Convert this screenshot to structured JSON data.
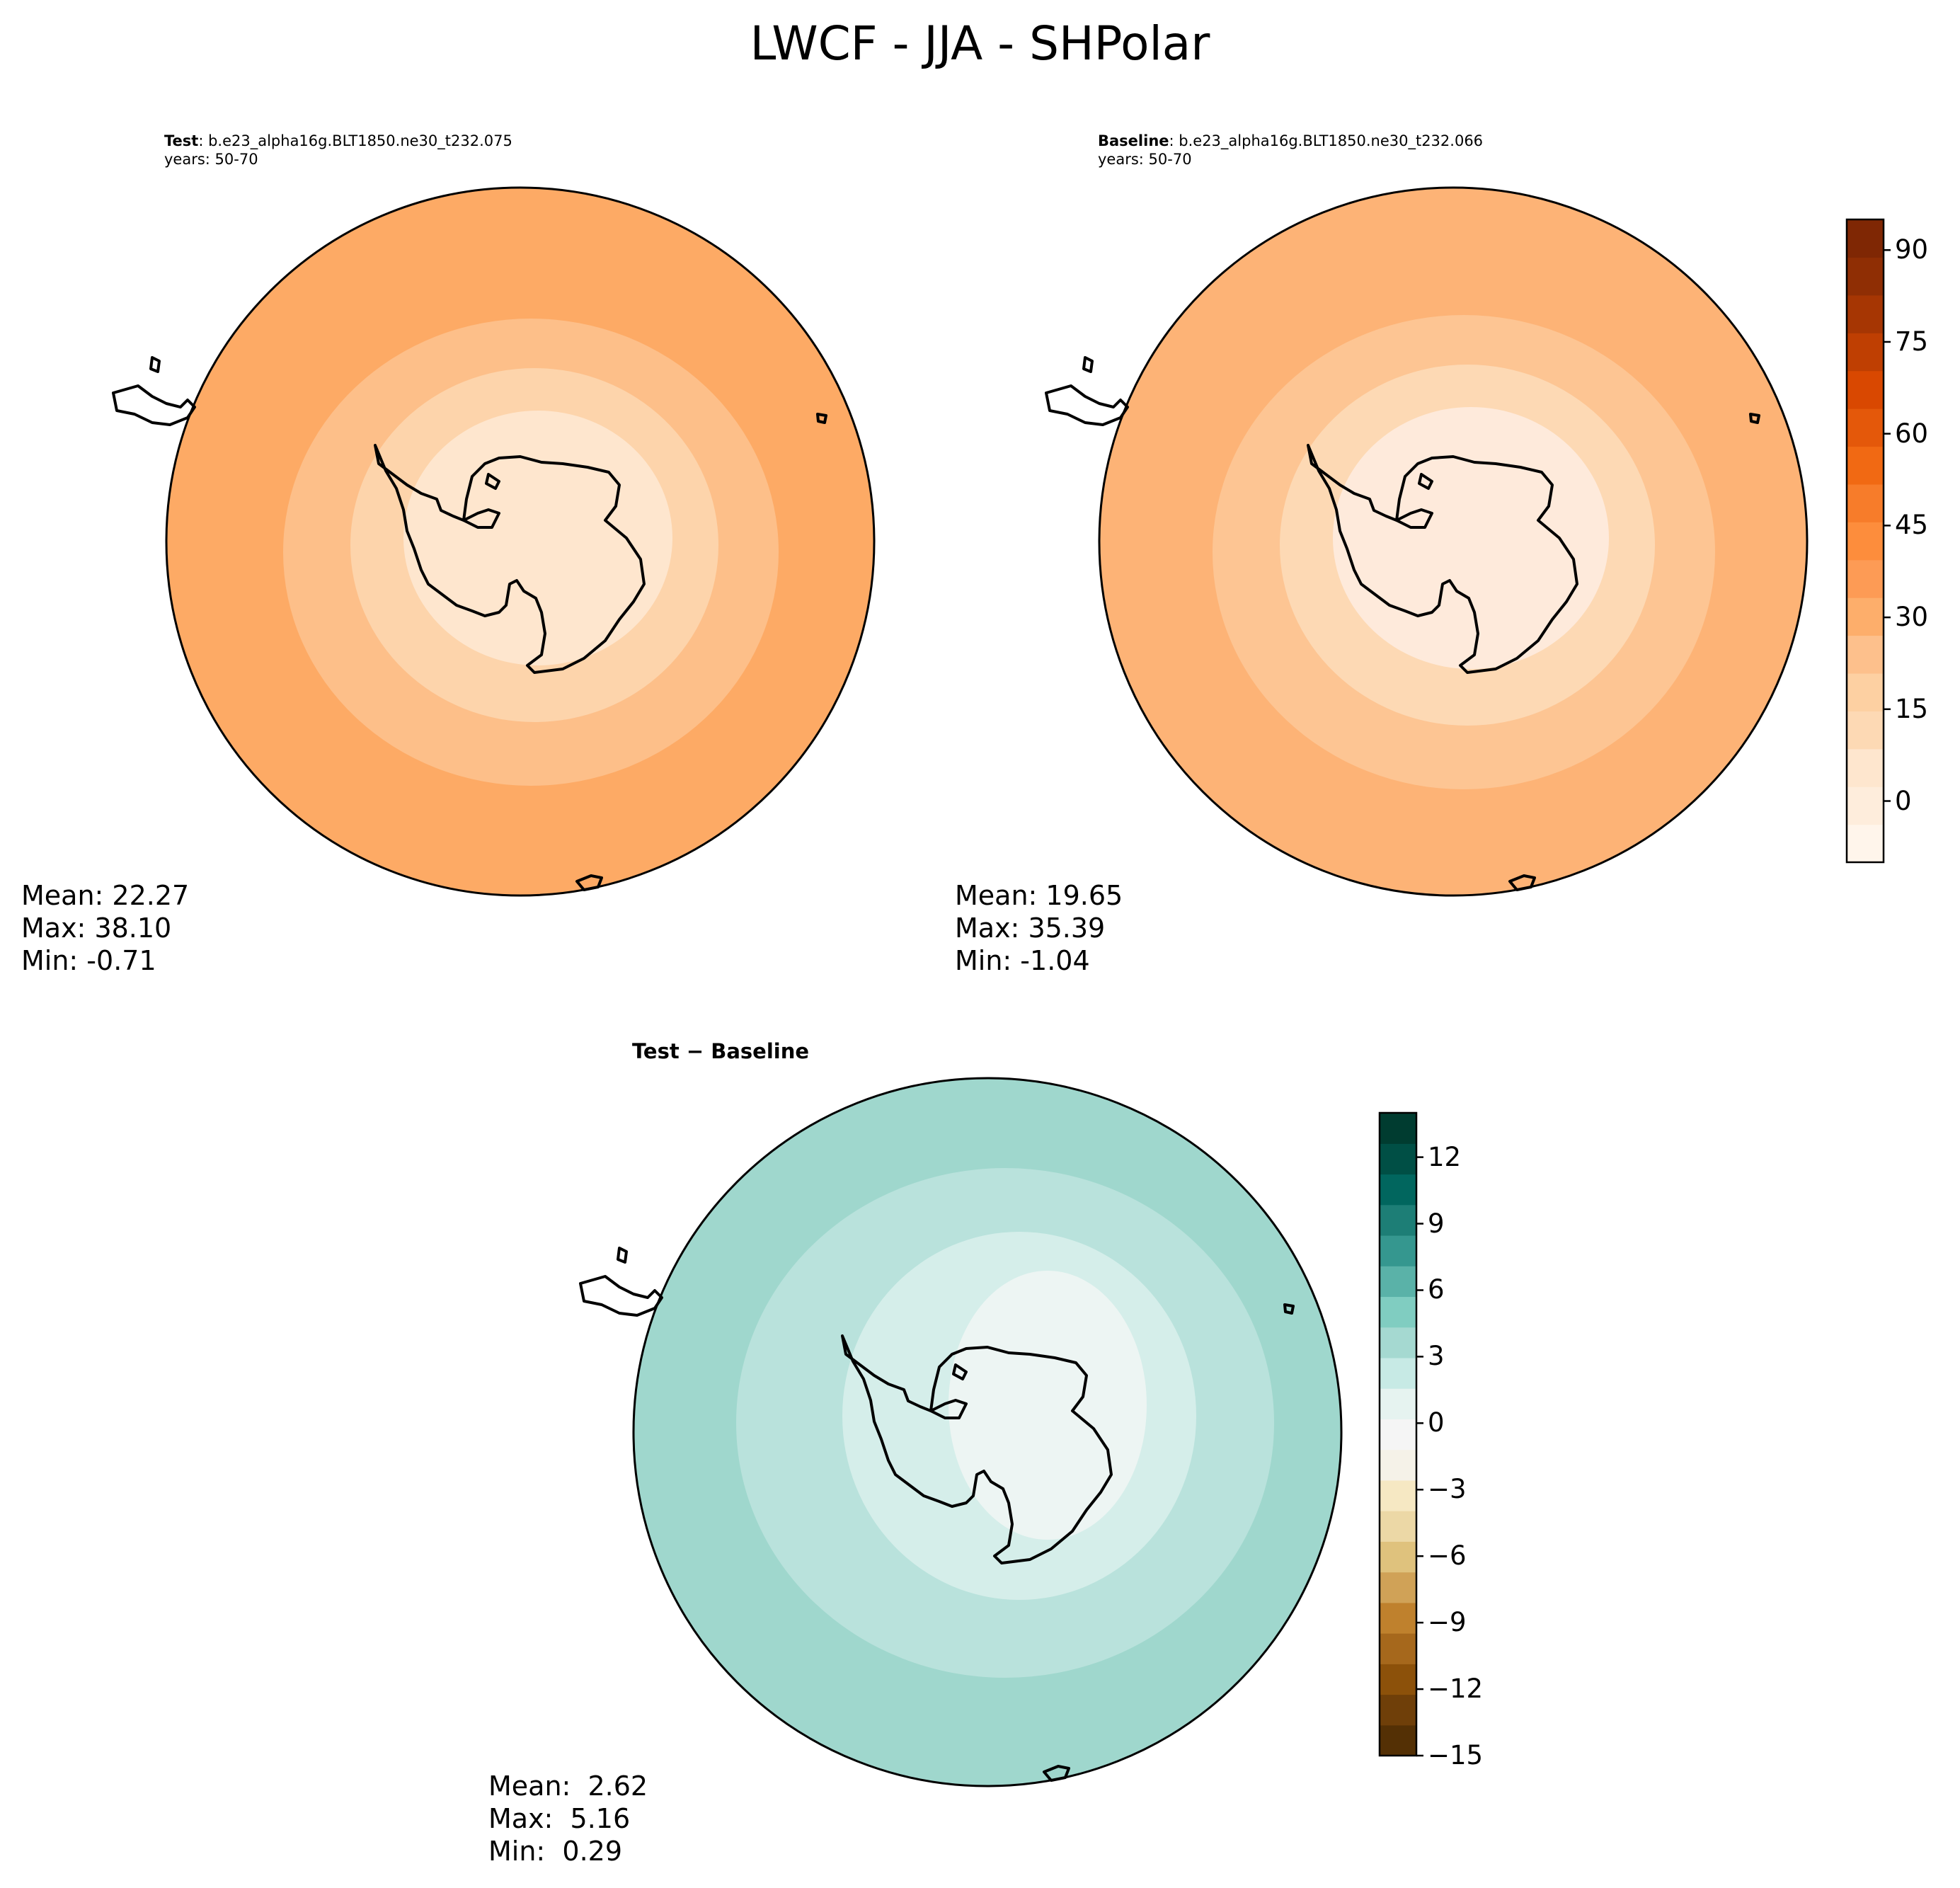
{
  "suptitle": "LWCF - JJA - SHPolar",
  "panels": {
    "test": {
      "title_bold": "Test",
      "case": ": b.e23_alpha16g.BLT1850.ne30_t232.075",
      "years": "years: 50-70",
      "stats": {
        "mean": "Mean: 22.27",
        "max": "Max: 38.10",
        "min": "Min: -0.71"
      }
    },
    "baseline": {
      "title_bold": "Baseline",
      "case": ": b.e23_alpha16g.BLT1850.ne30_t232.066",
      "years": "years: 50-70",
      "stats": {
        "mean": "Mean: 19.65",
        "max": "Max: 35.39",
        "min": "Min: -1.04"
      }
    },
    "diff": {
      "title": "Test − Baseline",
      "stats": {
        "mean": "Mean:  2.62",
        "max": "Max:  5.16",
        "min": "Min:  0.29"
      }
    }
  },
  "colorbars": {
    "lwcf": {
      "colormap": "Oranges",
      "range": [
        -10,
        95
      ],
      "ticks": [
        "90",
        "75",
        "60",
        "45",
        "30",
        "15",
        "0"
      ],
      "colors": [
        "#fff5eb",
        "#feeddc",
        "#fee6ce",
        "#fdd9b4",
        "#fdd0a2",
        "#fdc08c",
        "#fdae6b",
        "#fd9b55",
        "#fd8d3c",
        "#f77c2a",
        "#f16913",
        "#e4580a",
        "#d94801",
        "#bf3f02",
        "#a63603",
        "#8f2e04",
        "#7f2704"
      ]
    },
    "diff": {
      "colormap": "BrBG",
      "range": [
        -15,
        14
      ],
      "ticks": [
        "12",
        "9",
        "6",
        "3",
        "0",
        "−3",
        "−6",
        "−9",
        "−12",
        "−15"
      ],
      "colors": [
        "#543005",
        "#6f3f09",
        "#8c510a",
        "#a6681c",
        "#bf812d",
        "#d0a257",
        "#dfc27d",
        "#ecd8a6",
        "#f6e8c3",
        "#f5f2e8",
        "#f5f5f5",
        "#e6f3f0",
        "#c7eae5",
        "#a5d9d1",
        "#80cdc1",
        "#5ab2a8",
        "#35978f",
        "#1d7e76",
        "#01665e",
        "#004f45",
        "#003c30"
      ]
    }
  },
  "map_fill": {
    "test": [
      "#fdaa65",
      "#fdbf89",
      "#fdd4ab",
      "#fee6ce"
    ],
    "baseline": [
      "#fdb376",
      "#fdc593",
      "#fdd9b4",
      "#feeadb"
    ],
    "diff": [
      "#9fd7cd",
      "#b9e2dc",
      "#d5eeea",
      "#edf5f3"
    ]
  }
}
